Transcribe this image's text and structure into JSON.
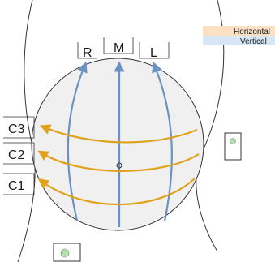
{
  "legend": {
    "items": [
      {
        "label": "Horizontal",
        "color": "#fbe0c4"
      },
      {
        "label": "Vertical",
        "color": "#d7e6f7"
      }
    ]
  },
  "labels": {
    "vertical": [
      "R",
      "M",
      "L"
    ],
    "horizontal": [
      "C3",
      "C2",
      "C1"
    ]
  },
  "colors": {
    "vertical_arrow": "#6a93c4",
    "horizontal_arrow": "#e0a21a",
    "globe_fill": "#f0f0f0",
    "outline": "#333333",
    "dot_fill": "#b5ddb1"
  },
  "icons": [
    "figure-outline",
    "vertical-arrow-icon",
    "horizontal-arrow-icon",
    "marker-box-icon",
    "center-point-icon"
  ]
}
